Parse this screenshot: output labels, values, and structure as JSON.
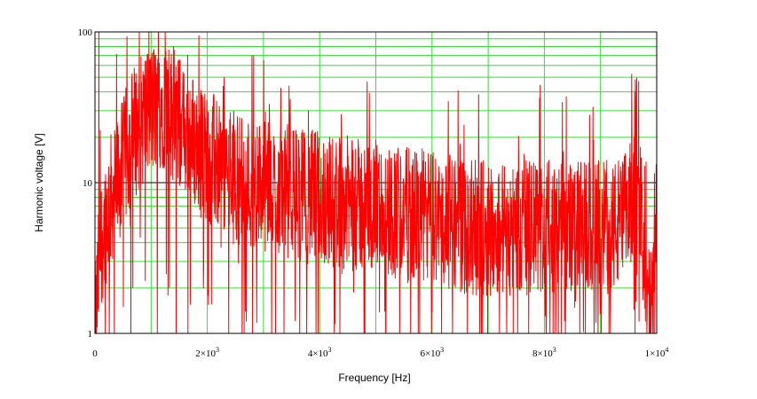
{
  "chart_data": {
    "type": "line",
    "title": "",
    "xlabel": "Frequency [Hz]",
    "ylabel": "Harmonic voltage [V]",
    "xlim": [
      0,
      10000
    ],
    "ylim": [
      1,
      100
    ],
    "yscale": "log",
    "grid": true,
    "legend": "none",
    "x_ticks": [
      {
        "base": "0",
        "exp": ""
      },
      {
        "base": "2×10",
        "exp": "3"
      },
      {
        "base": "4×10",
        "exp": "3"
      },
      {
        "base": "6×10",
        "exp": "3"
      },
      {
        "base": "8×10",
        "exp": "3"
      },
      {
        "base": "1×10",
        "exp": "4"
      }
    ],
    "y_ticks": [
      "1",
      "10",
      "100"
    ],
    "colors": {
      "series": "#ff0000",
      "minor_grid": "#33dd33",
      "major_grid": "#000000"
    },
    "series": [
      {
        "color": "#ff0000",
        "x": [
          0,
          100,
          200,
          300,
          400,
          500,
          600,
          700,
          800,
          900,
          1000,
          1100,
          1200,
          1300,
          1400,
          1500,
          1600,
          1700,
          1800,
          1900,
          2000,
          2100,
          2200,
          2300,
          2400,
          2500,
          2600,
          2700,
          2800,
          2900,
          3000,
          3200,
          3400,
          3600,
          3800,
          4000,
          4200,
          4400,
          4600,
          4800,
          5000,
          5200,
          5400,
          5600,
          5800,
          6000,
          6200,
          6400,
          6600,
          6800,
          7000,
          7200,
          7400,
          7600,
          7800,
          8000,
          8200,
          8400,
          8600,
          8800,
          9000,
          9200,
          9400,
          9500,
          9550,
          9600,
          9650,
          9700,
          9750,
          9800,
          9850,
          9900,
          9950,
          10000
        ],
        "y": [
          1.0,
          4.0,
          6.0,
          8.0,
          10,
          13,
          18,
          22,
          25,
          28,
          30,
          32,
          35,
          30,
          28,
          25,
          22,
          20,
          18,
          16,
          15,
          14,
          13,
          12,
          11,
          11,
          10.5,
          10,
          10,
          9.5,
          9.5,
          9,
          9,
          8.5,
          8,
          8,
          7.5,
          7.5,
          7,
          7,
          7,
          6.5,
          6.5,
          6,
          6,
          6,
          5.5,
          5.5,
          5,
          5,
          5,
          5,
          5,
          5,
          5,
          5,
          5,
          5,
          5,
          5,
          5,
          5,
          5.5,
          6,
          8,
          15,
          30,
          10,
          3,
          2,
          1.5,
          1.2,
          2,
          3
        ],
        "peaks": [
          {
            "x": 70,
            "y": 100
          },
          {
            "x": 1250,
            "y": 100
          },
          {
            "x": 1400,
            "y": 80
          },
          {
            "x": 1650,
            "y": 70
          },
          {
            "x": 980,
            "y": 65
          },
          {
            "x": 2300,
            "y": 50
          },
          {
            "x": 3800,
            "y": 30
          },
          {
            "x": 6500,
            "y": 18
          },
          {
            "x": 9680,
            "y": 47
          }
        ]
      }
    ]
  }
}
